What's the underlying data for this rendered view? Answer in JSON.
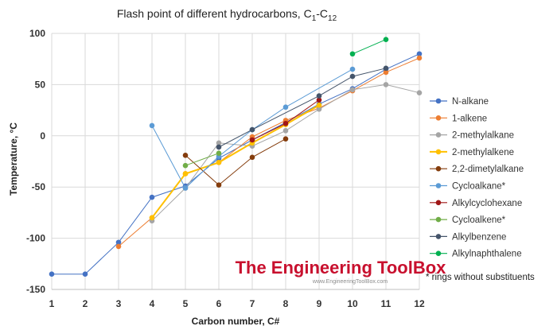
{
  "chart_data": {
    "type": "line",
    "title": "Flash point of different hydrocarbons, C",
    "title_sub_1": "1",
    "title_mid": "-C",
    "title_sub_2": "12",
    "xlabel": "Carbon number, C#",
    "ylabel": "Temperature, °C",
    "xlim": [
      1,
      12
    ],
    "ylim": [
      -150,
      100
    ],
    "x_ticks": [
      "1",
      "2",
      "3",
      "4",
      "5",
      "6",
      "7",
      "8",
      "9",
      "10",
      "11",
      "12"
    ],
    "y_ticks": [
      "100",
      "50",
      "0",
      "-50",
      "-100",
      "-150"
    ],
    "grid": true,
    "legend_position": "right",
    "note": "* rings without substituents",
    "series": [
      {
        "name": "N-alkane",
        "color": "#4472c4",
        "points": [
          [
            1,
            -135
          ],
          [
            2,
            -135
          ],
          [
            3,
            -104
          ],
          [
            4,
            -60
          ],
          [
            5,
            -49
          ],
          [
            6,
            -22
          ],
          [
            7,
            -4
          ],
          [
            8,
            13
          ],
          [
            9,
            31
          ],
          [
            10,
            46
          ],
          [
            11,
            65
          ],
          [
            12,
            80
          ]
        ]
      },
      {
        "name": "1-alkene",
        "color": "#ed7d31",
        "points": [
          [
            3,
            -108
          ],
          [
            4,
            -80
          ],
          [
            5,
            -37
          ],
          [
            6,
            -26
          ],
          [
            7,
            -1
          ],
          [
            8,
            15
          ],
          [
            9,
            27
          ],
          [
            10,
            44
          ],
          [
            11,
            62
          ],
          [
            12,
            76
          ]
        ]
      },
      {
        "name": "2-methylalkane",
        "color": "#a5a5a5",
        "points": [
          [
            4,
            -83
          ],
          [
            5,
            -51
          ],
          [
            6,
            -7
          ],
          [
            7,
            -10
          ],
          [
            8,
            5
          ],
          [
            9,
            26
          ],
          [
            10,
            45
          ],
          [
            11,
            50
          ],
          [
            12,
            42
          ]
        ]
      },
      {
        "name": "2-methylalkene",
        "color": "#ffc000",
        "points": [
          [
            4,
            -80
          ],
          [
            5,
            -37
          ],
          [
            6,
            -26
          ],
          [
            7,
            -7
          ],
          [
            8,
            11
          ],
          [
            9,
            30
          ]
        ]
      },
      {
        "name": "2,2-dimetylalkane",
        "color": "#843c0c",
        "points": [
          [
            5,
            -19
          ],
          [
            6,
            -48
          ],
          [
            7,
            -21
          ],
          [
            8,
            -3
          ]
        ]
      },
      {
        "name": "Cycloalkane*",
        "color": "#5b9bd5",
        "points": [
          [
            4,
            10
          ],
          [
            5,
            -51
          ],
          [
            6,
            -20
          ],
          [
            7,
            6
          ],
          [
            8,
            28
          ],
          [
            10,
            65
          ]
        ]
      },
      {
        "name": "Alkylcyclohexane",
        "color": "#a01717",
        "points": [
          [
            7,
            -4
          ],
          [
            8,
            12
          ],
          [
            9,
            35
          ]
        ]
      },
      {
        "name": "Cycloalkene*",
        "color": "#70ad47",
        "points": [
          [
            5,
            -29
          ],
          [
            6,
            -17
          ]
        ]
      },
      {
        "name": "Alkylbenzene",
        "color": "#44546a",
        "points": [
          [
            6,
            -11
          ],
          [
            7,
            6
          ],
          [
            9,
            39
          ],
          [
            10,
            58
          ],
          [
            11,
            66
          ]
        ]
      },
      {
        "name": "Alkylnaphthalene",
        "color": "#00b050",
        "points": [
          [
            10,
            80
          ],
          [
            11,
            94
          ]
        ]
      }
    ]
  },
  "watermark": {
    "brand": "The Engineering ToolBox",
    "url": "www.EngineeringToolBox.com"
  }
}
